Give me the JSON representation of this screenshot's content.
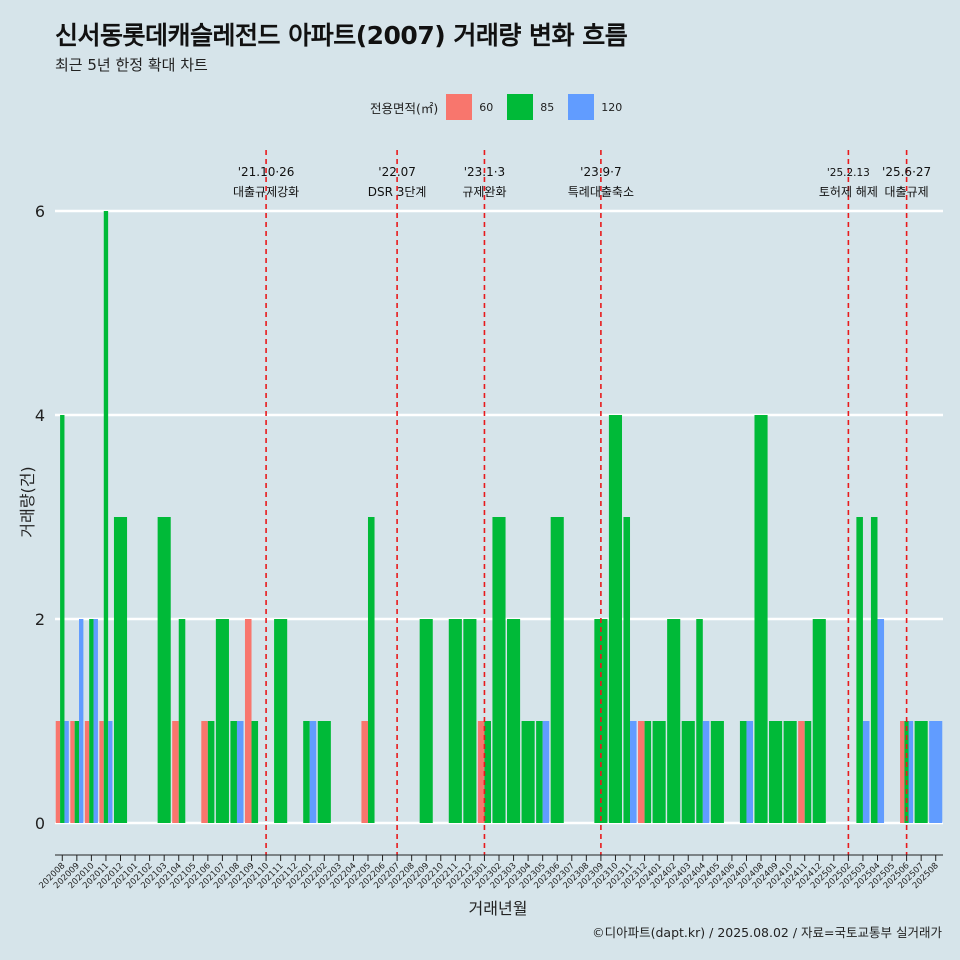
{
  "title": "신서동롯데캐슬레전드 아파트(2007) 거래량 변화 흐름",
  "subtitle": "최근 5년 한정 확대 차트",
  "legend_title": "전용면적(㎡)",
  "caption": "©디아파트(dapt.kr) / 2025.08.02 / 자료=국토교통부 실거래가",
  "colors": {
    "background": "#d6e4ea",
    "grid": "#ffffff",
    "event_line": "#e8191c"
  },
  "chart_data": {
    "type": "bar",
    "xlabel": "거래년월",
    "ylabel": "거래량(건)",
    "ylim": [
      0,
      6
    ],
    "yticks": [
      0,
      2,
      4,
      6
    ],
    "grid": true,
    "legend_position": "top",
    "categories": [
      "202008",
      "202009",
      "202010",
      "202011",
      "202012",
      "202101",
      "202102",
      "202103",
      "202104",
      "202105",
      "202106",
      "202107",
      "202108",
      "202109",
      "202110",
      "202111",
      "202112",
      "202201",
      "202202",
      "202203",
      "202204",
      "202205",
      "202206",
      "202207",
      "202208",
      "202209",
      "202210",
      "202211",
      "202212",
      "202301",
      "202302",
      "202303",
      "202304",
      "202305",
      "202306",
      "202307",
      "202308",
      "202309",
      "202310",
      "202311",
      "202312",
      "202401",
      "202402",
      "202403",
      "202404",
      "202405",
      "202406",
      "202407",
      "202408",
      "202409",
      "202410",
      "202411",
      "202412",
      "202501",
      "202502",
      "202503",
      "202504",
      "202505",
      "202506",
      "202507",
      "202508"
    ],
    "series": [
      {
        "name": "60",
        "color": "#f8766d",
        "values": [
          1,
          1,
          1,
          1,
          0,
          0,
          0,
          0,
          1,
          0,
          1,
          0,
          0,
          2,
          0,
          0,
          0,
          0,
          0,
          0,
          0,
          1,
          0,
          0,
          0,
          0,
          0,
          0,
          0,
          1,
          0,
          0,
          0,
          0,
          0,
          0,
          0,
          0,
          0,
          0,
          1,
          0,
          0,
          0,
          0,
          0,
          0,
          0,
          0,
          0,
          0,
          1,
          0,
          0,
          0,
          0,
          0,
          0,
          1,
          0,
          0
        ]
      },
      {
        "name": "85",
        "color": "#00ba38",
        "values": [
          4,
          1,
          2,
          6,
          3,
          0,
          0,
          3,
          2,
          0,
          1,
          2,
          1,
          1,
          0,
          2,
          0,
          1,
          1,
          0,
          0,
          3,
          0,
          0,
          0,
          2,
          0,
          2,
          2,
          1,
          3,
          2,
          1,
          1,
          3,
          0,
          0,
          2,
          4,
          3,
          1,
          1,
          2,
          1,
          2,
          1,
          0,
          1,
          4,
          1,
          1,
          1,
          2,
          0,
          0,
          3,
          3,
          0,
          1,
          1,
          0
        ]
      },
      {
        "name": "120",
        "color": "#619cff",
        "values": [
          1,
          2,
          2,
          1,
          0,
          0,
          0,
          0,
          0,
          0,
          0,
          0,
          1,
          0,
          0,
          0,
          0,
          1,
          0,
          0,
          0,
          0,
          0,
          0,
          0,
          0,
          0,
          0,
          0,
          0,
          0,
          0,
          0,
          1,
          0,
          0,
          0,
          0,
          0,
          1,
          0,
          0,
          0,
          0,
          1,
          0,
          0,
          1,
          0,
          0,
          0,
          0,
          0,
          0,
          0,
          1,
          2,
          0,
          1,
          0,
          1
        ]
      }
    ],
    "events": [
      {
        "label_top": "'21.10·26",
        "label_bottom": "대출규제강화",
        "at": "202110"
      },
      {
        "label_top": "'22.07",
        "label_bottom": "DSR 3단계",
        "at": "202207"
      },
      {
        "label_top": "'23.1·3",
        "label_bottom": "규제완화",
        "at": "202301"
      },
      {
        "label_top": "'23.9·7",
        "label_bottom": "특례대출축소",
        "at": "202309"
      },
      {
        "label_top": "'25.2.13",
        "label_bottom": "토허제 해제",
        "at": "202502"
      },
      {
        "label_top": "'25.6·27",
        "label_bottom": "대출규제",
        "at": "202506"
      }
    ]
  }
}
